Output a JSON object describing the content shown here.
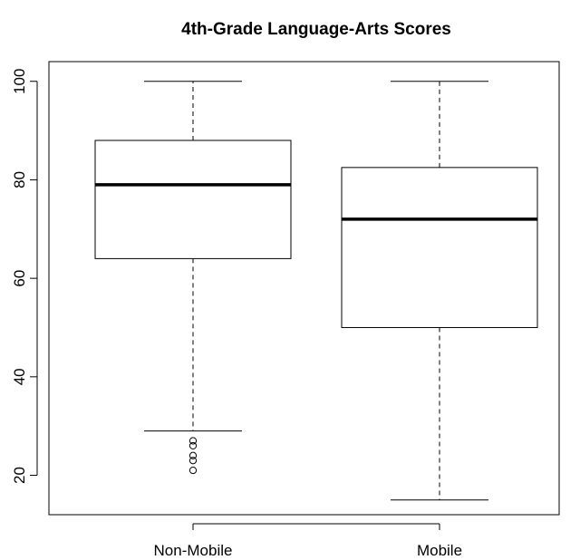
{
  "chart_data": {
    "type": "boxplot",
    "title": "4th-Grade Language-Arts Scores",
    "xlabel": "",
    "ylabel": "",
    "ylim": [
      12,
      104
    ],
    "yticks": [
      20,
      40,
      60,
      80,
      100
    ],
    "ytick_labels": [
      "20",
      "40",
      "60",
      "80",
      "100"
    ],
    "categories": [
      "Non-Mobile",
      "Mobile"
    ],
    "boxes": [
      {
        "category": "Non-Mobile",
        "whisker_low": 29,
        "q1": 64,
        "median": 79,
        "q3": 88,
        "whisker_high": 100,
        "outliers": [
          21,
          23,
          24,
          26,
          27
        ]
      },
      {
        "category": "Mobile",
        "whisker_low": 15,
        "q1": 50,
        "median": 72,
        "q3": 82.5,
        "whisker_high": 100,
        "outliers": []
      }
    ],
    "grid": false,
    "colors": {
      "box_fill": "#ffffff",
      "stroke": "#000000"
    }
  }
}
